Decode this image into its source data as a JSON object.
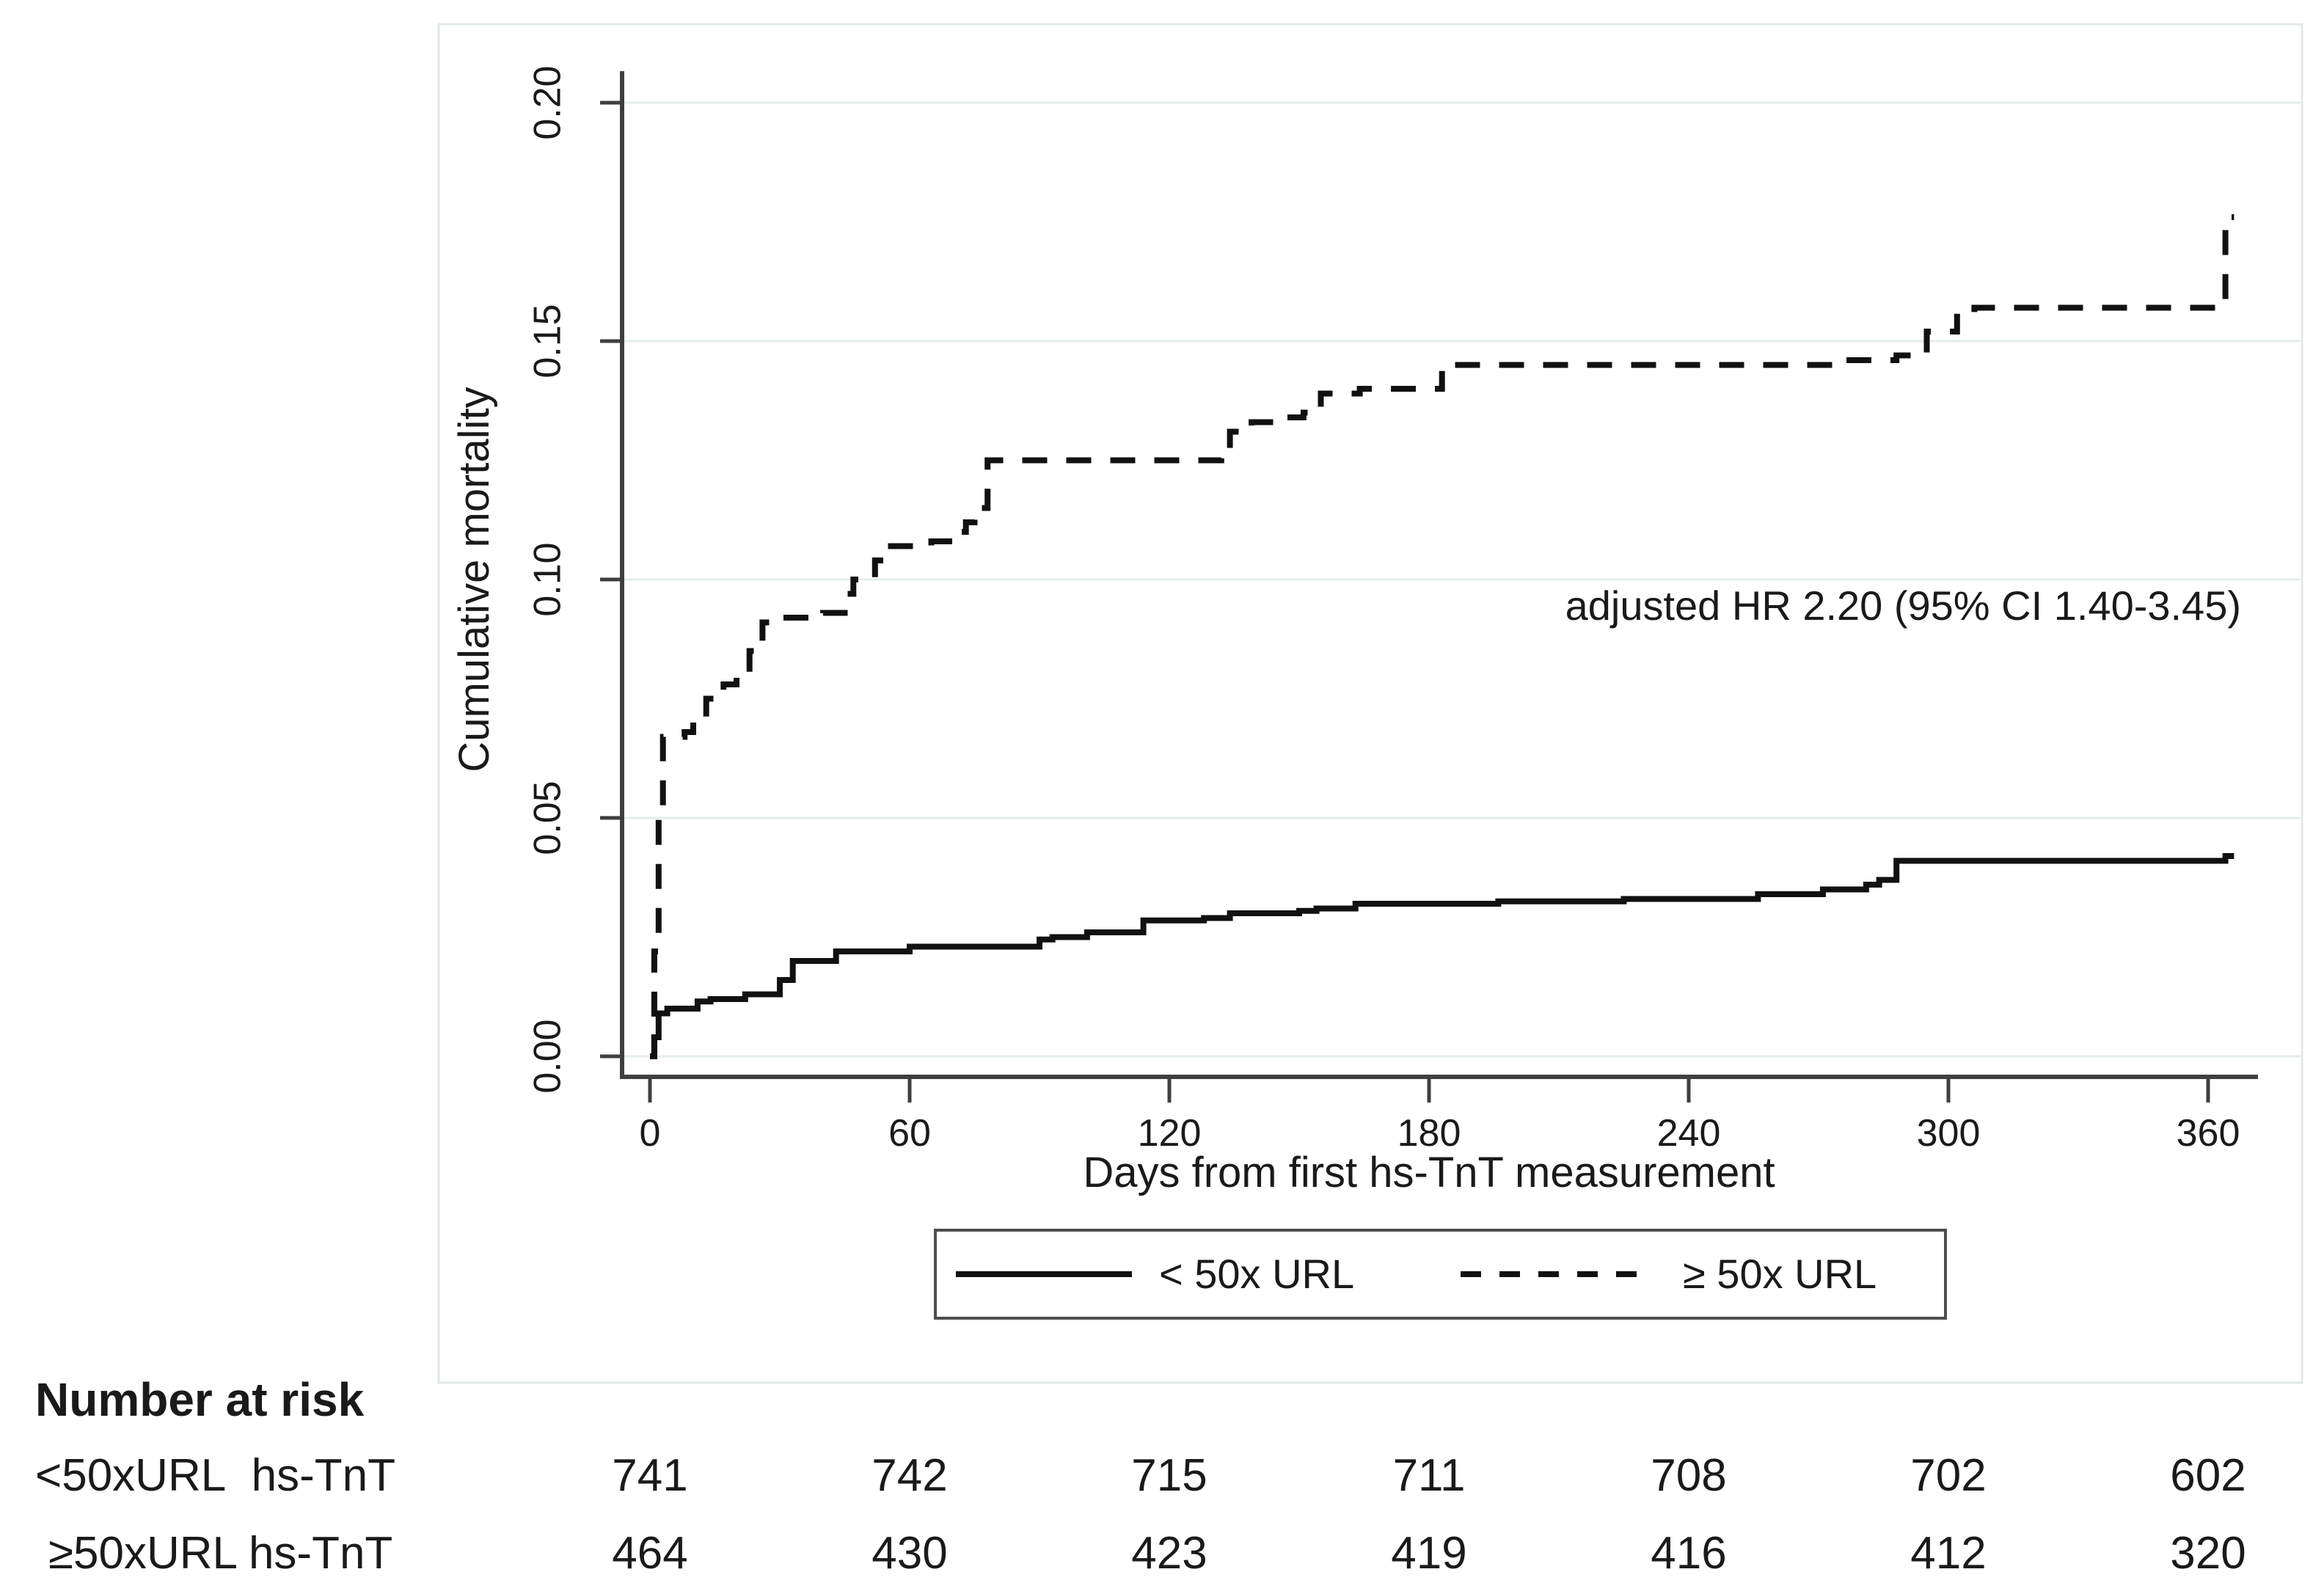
{
  "chart_data": {
    "type": "line",
    "subtype": "kaplan-meier-step",
    "title": "",
    "xlabel": "Days from first hs-TnT measurement",
    "ylabel": "Cumulative mortality",
    "xlim": [
      0,
      366
    ],
    "ylim": [
      0,
      0.2
    ],
    "grid": true,
    "x_tick_values": [
      0,
      60,
      120,
      180,
      240,
      300,
      360
    ],
    "x_tick_labels": [
      "0",
      "60",
      "120",
      "180",
      "240",
      "300",
      "360"
    ],
    "y_tick_values": [
      0.0,
      0.05,
      0.1,
      0.15,
      0.2
    ],
    "y_tick_labels": [
      "0.00",
      "0.05",
      "0.10",
      "0.15",
      "0.20"
    ],
    "annotation": "adjusted HR 2.20 (95% CI 1.40-3.45)",
    "legend_position": "bottom-center",
    "legend": [
      {
        "label": "< 50x URL",
        "style": "solid"
      },
      {
        "label": "≥  50x URL",
        "style": "dashed"
      }
    ],
    "series": [
      {
        "name": "< 50x URL",
        "style": "solid",
        "points": [
          [
            0,
            0
          ],
          [
            1,
            0.004
          ],
          [
            2,
            0.009
          ],
          [
            4,
            0.01
          ],
          [
            11,
            0.0115
          ],
          [
            14,
            0.012
          ],
          [
            22,
            0.013
          ],
          [
            30,
            0.016
          ],
          [
            33,
            0.02
          ],
          [
            43,
            0.022
          ],
          [
            60,
            0.023
          ],
          [
            90,
            0.0245
          ],
          [
            93,
            0.025
          ],
          [
            101,
            0.026
          ],
          [
            114,
            0.0285
          ],
          [
            128,
            0.029
          ],
          [
            134,
            0.03
          ],
          [
            150,
            0.0305
          ],
          [
            154,
            0.031
          ],
          [
            163,
            0.032
          ],
          [
            196,
            0.0325
          ],
          [
            225,
            0.033
          ],
          [
            256,
            0.034
          ],
          [
            271,
            0.035
          ],
          [
            281,
            0.036
          ],
          [
            284,
            0.037
          ],
          [
            288,
            0.041
          ],
          [
            362,
            0.041
          ],
          [
            364,
            0.042
          ]
        ]
      },
      {
        "name": "≥ 50x URL",
        "style": "dashed",
        "points": [
          [
            0,
            0
          ],
          [
            1,
            0.022
          ],
          [
            2,
            0.05
          ],
          [
            3,
            0.067
          ],
          [
            8,
            0.068
          ],
          [
            10,
            0.07
          ],
          [
            13,
            0.075
          ],
          [
            17,
            0.078
          ],
          [
            20,
            0.08
          ],
          [
            23,
            0.085
          ],
          [
            26,
            0.091
          ],
          [
            30,
            0.092
          ],
          [
            40,
            0.093
          ],
          [
            45,
            0.097
          ],
          [
            47,
            0.1
          ],
          [
            52,
            0.104
          ],
          [
            55,
            0.107
          ],
          [
            65,
            0.108
          ],
          [
            70,
            0.11
          ],
          [
            73,
            0.112
          ],
          [
            75,
            0.115
          ],
          [
            78,
            0.125
          ],
          [
            132,
            0.1255
          ],
          [
            134,
            0.131
          ],
          [
            139,
            0.133
          ],
          [
            147,
            0.134
          ],
          [
            151,
            0.135
          ],
          [
            155,
            0.139
          ],
          [
            164,
            0.14
          ],
          [
            183,
            0.145
          ],
          [
            270,
            0.145
          ],
          [
            274,
            0.146
          ],
          [
            288,
            0.147
          ],
          [
            295,
            0.152
          ],
          [
            302,
            0.156
          ],
          [
            306,
            0.157
          ],
          [
            362,
            0.157
          ],
          [
            364,
            0.176
          ]
        ]
      }
    ]
  },
  "risk_table": {
    "title": "Number at risk",
    "rows": [
      {
        "label": "<50xURL  hs-TnT",
        "counts": [
          "741",
          "742",
          "715",
          "711",
          "708",
          "702",
          "602"
        ]
      },
      {
        "label": "≥50xURL hs-TnT",
        "counts": [
          "464",
          "430",
          "423",
          "419",
          "416",
          "412",
          "320"
        ]
      }
    ]
  },
  "colors": {
    "curve": "#111111",
    "gridline": "#e3edec",
    "axis": "#3f3f3f",
    "text": "#1a1a1a",
    "panel_border": "#dfe9e9",
    "legend_border": "#4d4d4d",
    "background": "#ffffff"
  }
}
